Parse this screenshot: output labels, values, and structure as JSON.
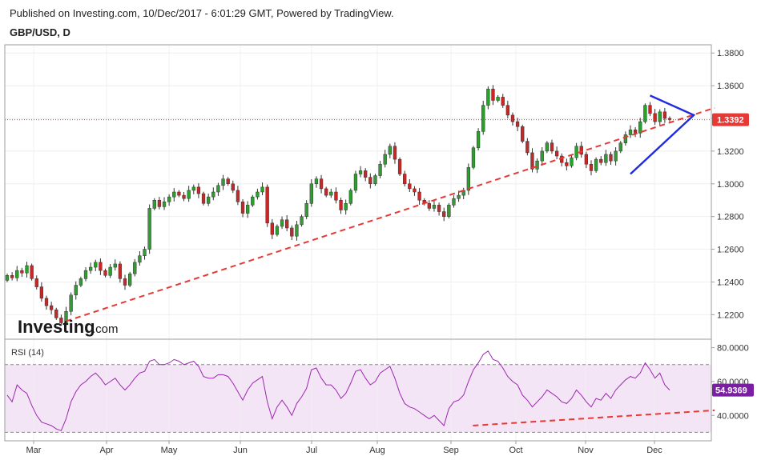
{
  "header": {
    "published": "Published on Investing.com, 10/Dec/2017 - 6:01:29 GMT, Powered by TradingView.",
    "symbol": "GBP/USD, D"
  },
  "watermark": {
    "brand_main": "Investing",
    "brand_suffix": ".com"
  },
  "rsi_panel": {
    "label": "RSI (14)",
    "current_value": "54.9369"
  },
  "price_panel": {
    "current_price": "1.3392"
  },
  "colors": {
    "up": "#2ca02c",
    "down": "#c62828",
    "rsi_line": "#9c27b0",
    "rsi_band": "#f3e5f5",
    "price_badge": "#e53935",
    "rsi_badge": "#7b1fa2",
    "trendline": "#e53935",
    "triangle": "#1e2be0"
  },
  "chart_data": [
    {
      "type": "candlestick",
      "title": "GBP/USD, D",
      "x_labels": [
        "Mar",
        "Apr",
        "May",
        "Jun",
        "Jul",
        "Aug",
        "Sep",
        "Oct",
        "Nov",
        "Dec"
      ],
      "y_ticks": [
        "1.3800",
        "1.3600",
        "1.3400",
        "1.3200",
        "1.3000",
        "1.2800",
        "1.2600",
        "1.2400",
        "1.2200"
      ],
      "ylim": [
        1.205,
        1.385
      ],
      "current_price": 1.3392,
      "closes": [
        1.244,
        1.2425,
        1.247,
        1.2455,
        1.25,
        1.242,
        1.237,
        1.23,
        1.2255,
        1.223,
        1.218,
        1.215,
        1.222,
        1.232,
        1.238,
        1.242,
        1.247,
        1.249,
        1.252,
        1.247,
        1.244,
        1.249,
        1.251,
        1.242,
        1.238,
        1.245,
        1.252,
        1.256,
        1.26,
        1.285,
        1.29,
        1.286,
        1.289,
        1.292,
        1.295,
        1.293,
        1.291,
        1.296,
        1.298,
        1.294,
        1.288,
        1.292,
        1.295,
        1.299,
        1.303,
        1.3,
        1.296,
        1.289,
        1.282,
        1.287,
        1.292,
        1.295,
        1.298,
        1.276,
        1.269,
        1.274,
        1.278,
        1.273,
        1.268,
        1.275,
        1.28,
        1.288,
        1.3,
        1.303,
        1.297,
        1.293,
        1.295,
        1.29,
        1.284,
        1.288,
        1.296,
        1.306,
        1.308,
        1.304,
        1.3,
        1.305,
        1.312,
        1.318,
        1.323,
        1.315,
        1.306,
        1.3,
        1.297,
        1.295,
        1.29,
        1.288,
        1.285,
        1.287,
        1.283,
        1.28,
        1.287,
        1.291,
        1.293,
        1.296,
        1.31,
        1.322,
        1.332,
        1.348,
        1.358,
        1.351,
        1.353,
        1.348,
        1.342,
        1.338,
        1.335,
        1.326,
        1.319,
        1.309,
        1.314,
        1.32,
        1.325,
        1.32,
        1.317,
        1.313,
        1.311,
        1.316,
        1.323,
        1.318,
        1.312,
        1.308,
        1.315,
        1.313,
        1.318,
        1.314,
        1.32,
        1.325,
        1.33,
        1.333,
        1.331,
        1.338,
        1.348,
        1.343,
        1.338,
        1.344,
        1.34,
        1.3392
      ],
      "annotations": {
        "trendline": {
          "color": "red",
          "style": "dashed",
          "from_index": 12,
          "from_price": 1.216,
          "to_index": 136,
          "to_price": 1.345
        },
        "triangle": {
          "color": "blue",
          "points": [
            [
              127,
              1.306
            ],
            [
              136,
              1.342
            ],
            [
              131,
              1.354
            ]
          ]
        }
      }
    },
    {
      "type": "line",
      "title": "RSI (14)",
      "y_ticks": [
        "80.0000",
        "60.0000",
        "40.0000"
      ],
      "ylim": [
        25,
        85
      ],
      "band": [
        30,
        70
      ],
      "current_value": 54.9369,
      "values": [
        52,
        48,
        58,
        55,
        53,
        46,
        40,
        36,
        35,
        34,
        32,
        31,
        38,
        48,
        54,
        58,
        60,
        63,
        65,
        62,
        58,
        60,
        62,
        58,
        55,
        58,
        62,
        65,
        66,
        72,
        73,
        70,
        70,
        71,
        73,
        72,
        70,
        71,
        72,
        69,
        63,
        62,
        62,
        64,
        64,
        63,
        59,
        54,
        49,
        55,
        59,
        61,
        63,
        48,
        38,
        45,
        49,
        45,
        40,
        47,
        51,
        56,
        67,
        68,
        62,
        58,
        58,
        55,
        50,
        53,
        59,
        66,
        67,
        62,
        58,
        60,
        65,
        67,
        69,
        62,
        53,
        47,
        45,
        44,
        42,
        40,
        38,
        40,
        37,
        34,
        44,
        48,
        49,
        52,
        60,
        67,
        71,
        76,
        78,
        73,
        72,
        68,
        63,
        60,
        58,
        52,
        49,
        45,
        48,
        51,
        55,
        53,
        51,
        48,
        47,
        50,
        55,
        52,
        48,
        45,
        50,
        49,
        53,
        50,
        55,
        58,
        61,
        63,
        62,
        65,
        71,
        67,
        62,
        65,
        58,
        54.9369
      ],
      "annotations": {
        "trendline": {
          "color": "red",
          "style": "dashed",
          "from_index": 90,
          "from_value": 34,
          "to_index": 136,
          "to_value": 43
        }
      }
    }
  ]
}
